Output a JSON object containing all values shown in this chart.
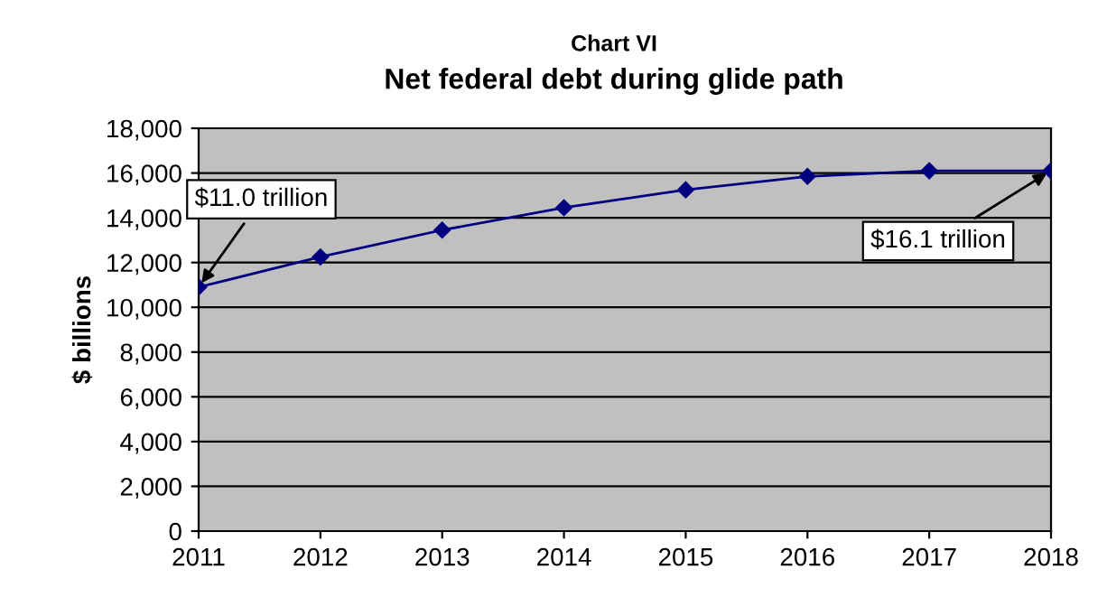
{
  "chart_data": {
    "type": "line",
    "title": "Chart VI",
    "subtitle": "Net federal debt during glide path",
    "ylabel": "$ billions",
    "x": [
      2011,
      2012,
      2013,
      2014,
      2015,
      2016,
      2017,
      2018
    ],
    "series": [
      {
        "color": "#000080",
        "values": [
          10900,
          12250,
          13450,
          14450,
          15250,
          15850,
          16100,
          16100
        ]
      }
    ],
    "xlim": [
      2011,
      2018
    ],
    "xticks": [
      2011,
      2012,
      2013,
      2014,
      2015,
      2016,
      2017,
      2018
    ],
    "ylim": [
      0,
      18000
    ],
    "yticks": [
      {
        "value": 0,
        "label": "0"
      },
      {
        "value": 2000,
        "label": "2,000"
      },
      {
        "value": 4000,
        "label": "4,000"
      },
      {
        "value": 6000,
        "label": "6,000"
      },
      {
        "value": 8000,
        "label": "8,000"
      },
      {
        "value": 10000,
        "label": "10,000"
      },
      {
        "value": 12000,
        "label": "12,000"
      },
      {
        "value": 14000,
        "label": "14,000"
      },
      {
        "value": 16000,
        "label": "16,000"
      },
      {
        "value": 18000,
        "label": "18,000"
      }
    ],
    "grid": "y",
    "marker": "diamond",
    "line_style": "solid",
    "annotations": [
      {
        "text": "$11.0 trillion",
        "x": 2011,
        "y": 10900
      },
      {
        "text": "$16.1 trillion",
        "x": 2018,
        "y": 16100
      }
    ]
  }
}
